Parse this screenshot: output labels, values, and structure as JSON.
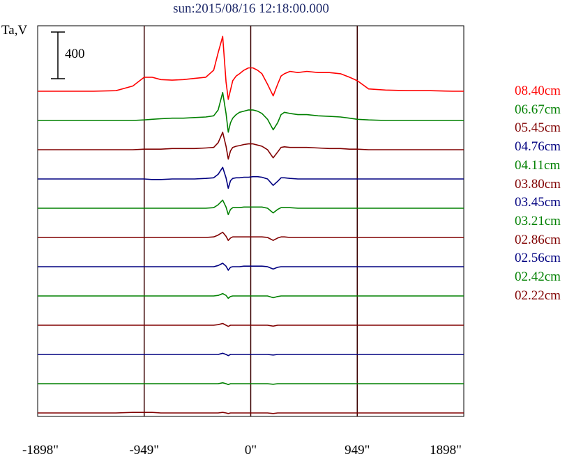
{
  "chart_data": {
    "type": "line",
    "title": "sun:2015/08/16 12:18:00.000",
    "ylabel": "Ta,V",
    "scale_bar": {
      "value": 400,
      "label": "400"
    },
    "xlim": [
      -1898,
      1898
    ],
    "x_ticks": [
      {
        "value": -1898,
        "label": "-1898\""
      },
      {
        "value": -949,
        "label": "-949\""
      },
      {
        "value": 0,
        "label": "0\""
      },
      {
        "value": 949,
        "label": "949\""
      },
      {
        "value": 1898,
        "label": "1898\""
      }
    ],
    "vertical_markers": [
      -949,
      0,
      949
    ],
    "grid": false,
    "legend_position": "right",
    "x": [
      -1898,
      -1800,
      -1600,
      -1400,
      -1200,
      -1050,
      -949,
      -880,
      -800,
      -700,
      -600,
      -500,
      -400,
      -330,
      -290,
      -250,
      -220,
      -200,
      -180,
      -160,
      -130,
      -100,
      -60,
      -20,
      20,
      60,
      100,
      150,
      200,
      240,
      270,
      300,
      350,
      420,
      500,
      600,
      700,
      800,
      880,
      949,
      1050,
      1200,
      1400,
      1600,
      1800,
      1898
    ],
    "series": [
      {
        "name": "08.40cm",
        "color": "#ff0000",
        "values": [
          0,
          0,
          0,
          0,
          5,
          45,
          120,
          120,
          100,
          95,
          100,
          110,
          120,
          180,
          330,
          470,
          80,
          -70,
          10,
          90,
          130,
          150,
          180,
          200,
          200,
          180,
          150,
          60,
          -40,
          60,
          130,
          150,
          170,
          160,
          170,
          160,
          160,
          150,
          120,
          90,
          20,
          10,
          5,
          5,
          0,
          0
        ]
      },
      {
        "name": "06.67cm",
        "color": "#008000",
        "values": [
          0,
          0,
          0,
          0,
          0,
          0,
          5,
          10,
          15,
          20,
          20,
          25,
          30,
          40,
          90,
          240,
          60,
          -100,
          -20,
          20,
          50,
          70,
          80,
          90,
          90,
          80,
          60,
          10,
          -80,
          -20,
          50,
          70,
          60,
          50,
          50,
          40,
          35,
          30,
          20,
          10,
          5,
          0,
          0,
          0,
          0,
          0
        ]
      },
      {
        "name": "05.45cm",
        "color": "#800000",
        "values": [
          0,
          0,
          0,
          0,
          0,
          0,
          5,
          5,
          5,
          10,
          10,
          10,
          15,
          20,
          60,
          150,
          30,
          -80,
          -10,
          20,
          30,
          35,
          45,
          50,
          50,
          40,
          30,
          0,
          -70,
          -20,
          20,
          25,
          20,
          20,
          20,
          15,
          10,
          10,
          5,
          5,
          0,
          0,
          0,
          0,
          0,
          0
        ]
      },
      {
        "name": "04.76cm",
        "color": "#000080",
        "values": [
          0,
          0,
          0,
          0,
          0,
          0,
          0,
          -5,
          -5,
          0,
          0,
          0,
          5,
          10,
          40,
          100,
          10,
          -80,
          -15,
          5,
          10,
          10,
          15,
          15,
          20,
          20,
          15,
          0,
          -55,
          -20,
          10,
          10,
          5,
          0,
          0,
          0,
          0,
          0,
          0,
          0,
          0,
          0,
          0,
          0,
          0,
          0
        ]
      },
      {
        "name": "04.11cm",
        "color": "#008000",
        "values": [
          0,
          0,
          0,
          0,
          0,
          0,
          0,
          0,
          0,
          0,
          0,
          0,
          0,
          5,
          30,
          70,
          10,
          -55,
          -10,
          5,
          5,
          5,
          10,
          10,
          10,
          10,
          10,
          0,
          -40,
          -10,
          5,
          5,
          5,
          0,
          0,
          0,
          0,
          0,
          0,
          0,
          0,
          0,
          0,
          0,
          0,
          0
        ]
      },
      {
        "name": "03.80cm",
        "color": "#800000",
        "values": [
          0,
          0,
          0,
          0,
          0,
          0,
          0,
          0,
          0,
          0,
          0,
          0,
          0,
          5,
          20,
          45,
          10,
          -25,
          -5,
          5,
          5,
          5,
          5,
          5,
          5,
          5,
          5,
          0,
          -25,
          -5,
          5,
          5,
          0,
          0,
          0,
          0,
          0,
          0,
          0,
          0,
          0,
          0,
          0,
          0,
          0,
          0
        ]
      },
      {
        "name": "03.45cm",
        "color": "#000080",
        "values": [
          0,
          0,
          0,
          0,
          0,
          0,
          0,
          0,
          0,
          0,
          0,
          0,
          0,
          0,
          10,
          30,
          5,
          -30,
          -5,
          0,
          0,
          0,
          5,
          5,
          5,
          5,
          5,
          0,
          -20,
          -5,
          0,
          0,
          0,
          0,
          0,
          0,
          0,
          0,
          0,
          0,
          0,
          0,
          0,
          0,
          0,
          0
        ]
      },
      {
        "name": "03.21cm",
        "color": "#008000",
        "values": [
          0,
          0,
          0,
          0,
          0,
          0,
          0,
          0,
          0,
          0,
          0,
          0,
          0,
          0,
          5,
          20,
          5,
          -20,
          -5,
          0,
          0,
          0,
          0,
          0,
          0,
          0,
          0,
          0,
          -15,
          -5,
          0,
          0,
          0,
          0,
          0,
          0,
          0,
          0,
          0,
          0,
          0,
          0,
          0,
          0,
          0,
          0
        ]
      },
      {
        "name": "02.86cm",
        "color": "#800000",
        "values": [
          0,
          0,
          0,
          0,
          0,
          0,
          0,
          0,
          0,
          0,
          0,
          0,
          0,
          0,
          5,
          15,
          0,
          -10,
          0,
          0,
          0,
          0,
          0,
          0,
          0,
          0,
          0,
          0,
          -8,
          0,
          0,
          0,
          0,
          0,
          0,
          0,
          0,
          0,
          0,
          0,
          0,
          0,
          0,
          0,
          0,
          0
        ]
      },
      {
        "name": "02.56cm",
        "color": "#000080",
        "values": [
          0,
          0,
          0,
          0,
          0,
          0,
          0,
          0,
          0,
          0,
          0,
          0,
          0,
          0,
          0,
          10,
          0,
          -10,
          0,
          0,
          0,
          0,
          0,
          0,
          0,
          0,
          0,
          0,
          -5,
          0,
          0,
          0,
          0,
          0,
          0,
          0,
          0,
          0,
          0,
          0,
          0,
          0,
          0,
          0,
          0,
          0
        ]
      },
      {
        "name": "02.42cm",
        "color": "#008000",
        "values": [
          0,
          0,
          0,
          0,
          0,
          0,
          0,
          0,
          0,
          0,
          0,
          0,
          0,
          0,
          0,
          8,
          0,
          -8,
          0,
          0,
          0,
          0,
          0,
          0,
          0,
          0,
          0,
          0,
          -5,
          0,
          0,
          0,
          0,
          0,
          0,
          0,
          0,
          0,
          0,
          0,
          0,
          0,
          0,
          0,
          0,
          0
        ]
      },
      {
        "name": "02.22cm",
        "color": "#800000",
        "values": [
          0,
          0,
          0,
          0,
          0,
          5,
          5,
          5,
          0,
          0,
          0,
          0,
          0,
          0,
          0,
          5,
          0,
          -5,
          0,
          0,
          0,
          0,
          0,
          0,
          0,
          0,
          0,
          0,
          -5,
          0,
          0,
          0,
          0,
          0,
          0,
          0,
          0,
          0,
          0,
          0,
          0,
          0,
          0,
          0,
          0,
          0
        ]
      }
    ]
  }
}
